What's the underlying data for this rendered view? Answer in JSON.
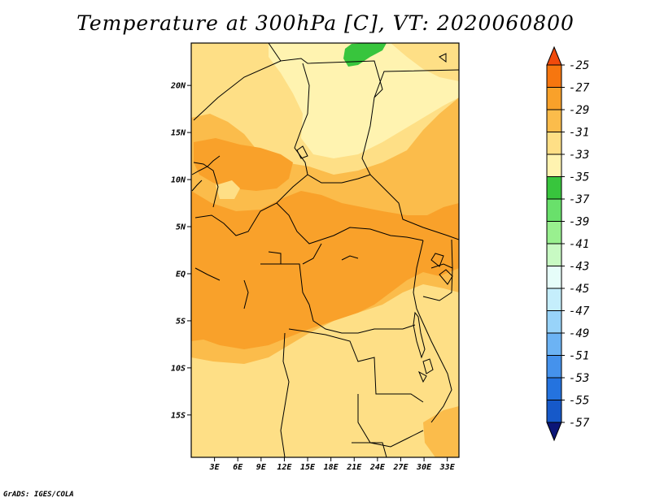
{
  "title": "Temperature at 300hPa [C], VT: 2020060800",
  "credit": "GrADS: IGES/COLA",
  "map": {
    "lon_range": [
      0,
      34.5
    ],
    "lat_range": [
      -19.5,
      24.5
    ],
    "lon_ticks": [
      {
        "value": 3,
        "label": "3E"
      },
      {
        "value": 6,
        "label": "6E"
      },
      {
        "value": 9,
        "label": "9E"
      },
      {
        "value": 12,
        "label": "12E"
      },
      {
        "value": 15,
        "label": "15E"
      },
      {
        "value": 18,
        "label": "18E"
      },
      {
        "value": 21,
        "label": "21E"
      },
      {
        "value": 24,
        "label": "24E"
      },
      {
        "value": 27,
        "label": "27E"
      },
      {
        "value": 30,
        "label": "30E"
      },
      {
        "value": 33,
        "label": "33E"
      }
    ],
    "lat_ticks": [
      {
        "value": 20,
        "label": "20N"
      },
      {
        "value": 15,
        "label": "15N"
      },
      {
        "value": 10,
        "label": "10N"
      },
      {
        "value": 5,
        "label": "5N"
      },
      {
        "value": 0,
        "label": "EQ"
      },
      {
        "value": -5,
        "label": "5S"
      },
      {
        "value": -10,
        "label": "10S"
      },
      {
        "value": -15,
        "label": "15S"
      }
    ],
    "fill_colors": {
      "-27_-29": "#f9a12a",
      "-29_-31": "#fbbc4b",
      "-31_-33": "#fedf86",
      "-33_-35": "#fff3b0",
      "-35_-37": "#38c53d",
      "background": "#fbbc4b"
    },
    "boundary_color": "#000000"
  },
  "colorbar": {
    "levels": [
      "-25",
      "-27",
      "-29",
      "-31",
      "-33",
      "-35",
      "-37",
      "-39",
      "-41",
      "-43",
      "-45",
      "-47",
      "-49",
      "-51",
      "-53",
      "-55",
      "-57"
    ],
    "colors": [
      "#f04a0c",
      "#f6760f",
      "#f9a12a",
      "#fbbc4b",
      "#fedf86",
      "#fff3b0",
      "#38c53d",
      "#69e06b",
      "#99f08f",
      "#c8fac3",
      "#e6fdf9",
      "#c5eefc",
      "#98d3f9",
      "#6cb3f4",
      "#4592ec",
      "#2473df",
      "#1659c9",
      "#0c3cae",
      "#0b1677"
    ]
  }
}
